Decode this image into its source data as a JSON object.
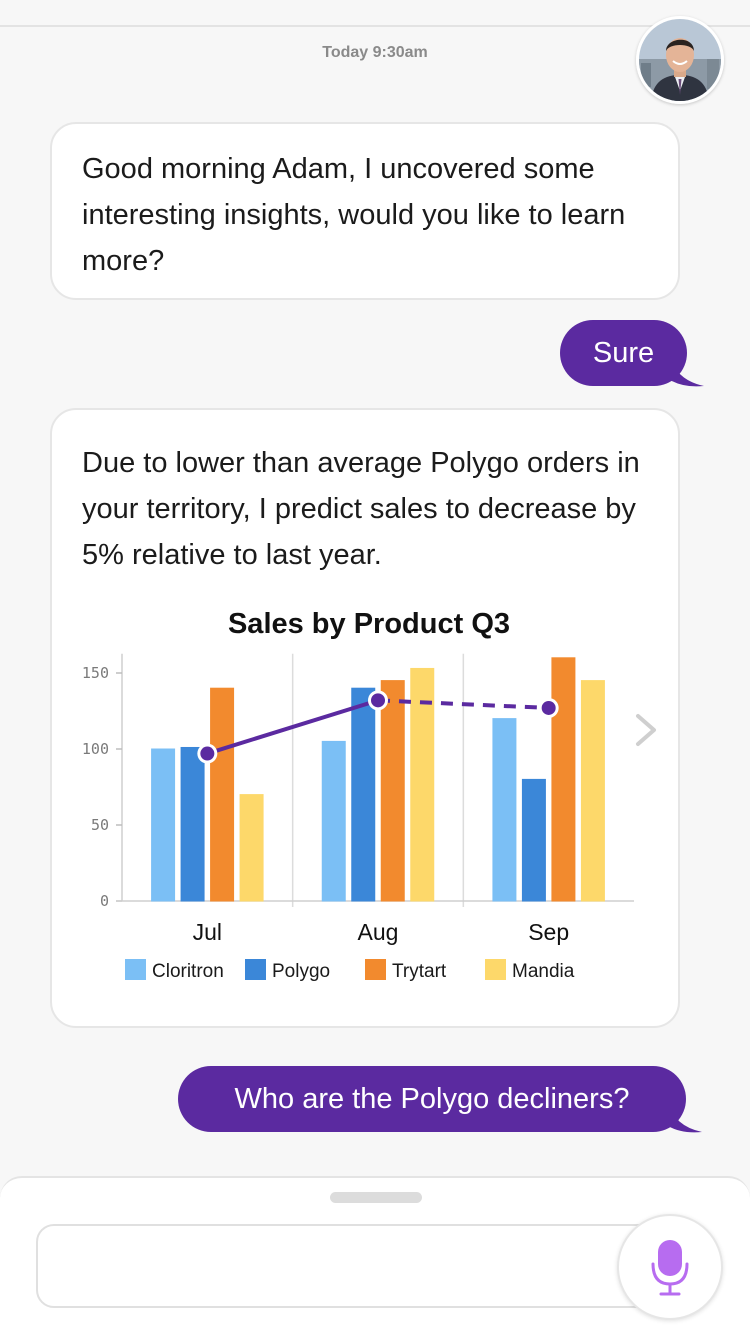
{
  "header": {
    "timestamp": "Today 9:30am"
  },
  "messages": [
    {
      "from": "bot",
      "text": "Good morning Adam, I uncovered some interesting insights, would you like to learn more?"
    },
    {
      "from": "user",
      "text": "Sure"
    },
    {
      "from": "bot",
      "text": "Due to lower than average Polygo orders in your territory, I predict sales to decrease by 5% relative to last year."
    },
    {
      "from": "user",
      "text": "Who are the Polygo decliners?"
    }
  ],
  "colors": {
    "accent": "#5b2aa0",
    "cloritron": "#7bbff5",
    "polygo": "#3b87d8",
    "trytart": "#f28a2e",
    "mandia": "#fdd86a",
    "mic": "#b76cf0"
  },
  "icons": {
    "avatar": "user-photo",
    "next": "chevron-right-icon",
    "mic": "microphone-icon"
  },
  "composer": {
    "placeholder": ""
  },
  "chart_data": {
    "type": "bar",
    "title": "Sales by Product Q3",
    "categories": [
      "Jul",
      "Aug",
      "Sep"
    ],
    "ylim": [
      0,
      160
    ],
    "yticks": [
      0,
      50,
      100,
      150
    ],
    "grid": "vertical category separators",
    "legend_position": "bottom",
    "series": [
      {
        "name": "Cloritron",
        "color": "#7bbff5",
        "values": [
          100,
          105,
          120
        ]
      },
      {
        "name": "Polygo",
        "color": "#3b87d8",
        "values": [
          101,
          140,
          80
        ]
      },
      {
        "name": "Trytart",
        "color": "#f28a2e",
        "values": [
          140,
          145,
          160
        ]
      },
      {
        "name": "Mandia",
        "color": "#fdd86a",
        "values": [
          70,
          153,
          145
        ]
      }
    ],
    "trend_line": {
      "color": "#5b2aa0",
      "values": [
        97,
        132,
        127
      ],
      "dashed_from_index": 1
    }
  }
}
